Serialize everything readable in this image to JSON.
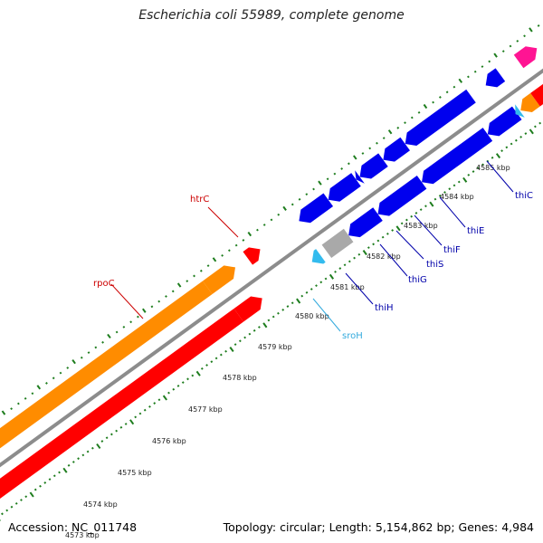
{
  "title": "Escherichia coli 55989, complete genome",
  "footer": {
    "accession": "Accession: NC_011748",
    "summary": "Topology: circular; Length: 5,154,862 bp; Genes: 4,984"
  },
  "colors": {
    "backbone": "#8c8c8c",
    "tick": "#1e7d1e",
    "orange": "#ff8c00",
    "red": "#ff0000",
    "blue": "#0000ee",
    "gray": "#a9a9a9",
    "cyan": "#33bbee",
    "pink": "#ff1493",
    "label_red": "#cc0000",
    "label_blue": "#0000aa",
    "label_cyan": "#33aadd"
  },
  "ticks": [
    {
      "label": "4573 kbp"
    },
    {
      "label": "4574 kbp"
    },
    {
      "label": "4575 kbp"
    },
    {
      "label": "4576 kbp"
    },
    {
      "label": "4577 kbp"
    },
    {
      "label": "4578 kbp"
    },
    {
      "label": "4579 kbp"
    },
    {
      "label": "4580 kbp"
    },
    {
      "label": "4581 kbp"
    },
    {
      "label": "4582 kbp"
    },
    {
      "label": "4583 kbp"
    },
    {
      "label": "4584 kbp"
    },
    {
      "label": "4585 kbp"
    }
  ],
  "gene_labels": [
    {
      "name": "rpoC",
      "color": "label_red"
    },
    {
      "name": "htrC",
      "color": "label_red"
    },
    {
      "name": "sroH",
      "color": "label_cyan"
    },
    {
      "name": "thiH",
      "color": "label_blue"
    },
    {
      "name": "thiG",
      "color": "label_blue"
    },
    {
      "name": "thiS",
      "color": "label_blue"
    },
    {
      "name": "thiF",
      "color": "label_blue"
    },
    {
      "name": "thiE",
      "color": "label_blue"
    },
    {
      "name": "thiC",
      "color": "label_blue"
    }
  ]
}
